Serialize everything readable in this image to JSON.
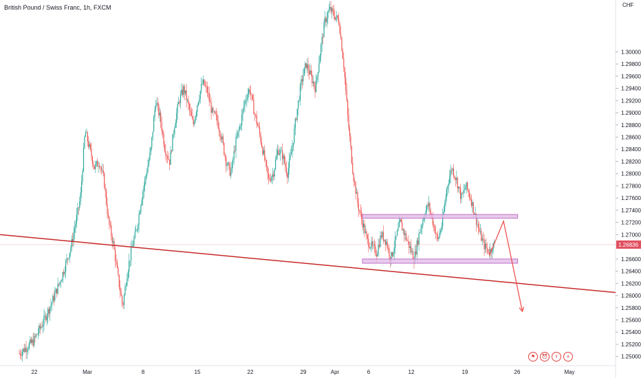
{
  "header": {
    "title": "British Pound / Swiss Franc, 1h, FXCM"
  },
  "price_axis": {
    "currency": "CHF"
  },
  "last_price": {
    "label": "1.26836",
    "value": 1.26836,
    "color": "#e05060"
  },
  "colors": {
    "up": "#26a69a",
    "down": "#ef5350",
    "trendline": "#c62828",
    "zone_fill": "#e1bee7",
    "zone_border": "#c070c8",
    "projection": "#ef5350"
  },
  "toolbar_icons": [
    "flag-icon",
    "alert-icon",
    "share-icon",
    "add-icon"
  ],
  "chart_data": {
    "type": "candlestick",
    "title": "British Pound / Swiss Franc, 1h, FXCM",
    "ylim": [
      1.2485,
      1.3085
    ],
    "y_ticks": [
      "1.25000",
      "1.25200",
      "1.25400",
      "1.25600",
      "1.25800",
      "1.26000",
      "1.26200",
      "1.26400",
      "1.26600",
      "1.27000",
      "1.27200",
      "1.27400",
      "1.27600",
      "1.27800",
      "1.28000",
      "1.28200",
      "1.28400",
      "1.28600",
      "1.28800",
      "1.29000",
      "1.29200",
      "1.29400",
      "1.29600",
      "1.29800",
      "1.30000"
    ],
    "x_ticks": [
      "22",
      "Mar",
      "8",
      "15",
      "22",
      "29",
      "Apr",
      "6",
      "12",
      "19",
      "26",
      "May"
    ],
    "price_path": [
      [
        0,
        1.2505
      ],
      [
        3,
        1.2525
      ],
      [
        5,
        1.2555
      ],
      [
        7,
        1.259
      ],
      [
        9,
        1.263
      ],
      [
        11,
        1.268
      ],
      [
        13,
        1.276
      ],
      [
        14,
        1.287
      ],
      [
        15,
        1.284
      ],
      [
        16,
        1.281
      ],
      [
        17,
        1.282
      ],
      [
        18,
        1.279
      ],
      [
        19,
        1.272
      ],
      [
        20,
        1.2685
      ],
      [
        21,
        1.263
      ],
      [
        22,
        1.2582
      ],
      [
        23,
        1.264
      ],
      [
        24,
        1.268
      ],
      [
        25,
        1.271
      ],
      [
        26,
        1.276
      ],
      [
        27,
        1.28
      ],
      [
        28,
        1.284
      ],
      [
        29,
        1.292
      ],
      [
        30,
        1.289
      ],
      [
        31,
        1.284
      ],
      [
        32,
        1.282
      ],
      [
        33,
        1.288
      ],
      [
        34,
        1.292
      ],
      [
        35,
        1.294
      ],
      [
        36,
        1.291
      ],
      [
        37,
        1.288
      ],
      [
        38,
        1.292
      ],
      [
        39,
        1.295
      ],
      [
        40,
        1.2935
      ],
      [
        41,
        1.29
      ],
      [
        42,
        1.289
      ],
      [
        43,
        1.286
      ],
      [
        44,
        1.282
      ],
      [
        45,
        1.28
      ],
      [
        46,
        1.285
      ],
      [
        47,
        1.288
      ],
      [
        48,
        1.292
      ],
      [
        49,
        1.294
      ],
      [
        50,
        1.29
      ],
      [
        51,
        1.287
      ],
      [
        52,
        1.283
      ],
      [
        53,
        1.279
      ],
      [
        54,
        1.28
      ],
      [
        55,
        1.284
      ],
      [
        56,
        1.283
      ],
      [
        57,
        1.28
      ],
      [
        58,
        1.284
      ],
      [
        59,
        1.29
      ],
      [
        60,
        1.295
      ],
      [
        61,
        1.298
      ],
      [
        62,
        1.296
      ],
      [
        63,
        1.294
      ],
      [
        64,
        1.3
      ],
      [
        65,
        1.305
      ],
      [
        66,
        1.307
      ],
      [
        67,
        1.306
      ],
      [
        68,
        1.305
      ],
      [
        69,
        1.298
      ],
      [
        70,
        1.288
      ],
      [
        71,
        1.28
      ],
      [
        72,
        1.275
      ],
      [
        73,
        1.272
      ],
      [
        74,
        1.269
      ],
      [
        75,
        1.268
      ],
      [
        76,
        1.267
      ],
      [
        77,
        1.27
      ],
      [
        78,
        1.269
      ],
      [
        79,
        1.266
      ],
      [
        80,
        1.269
      ],
      [
        81,
        1.272
      ],
      [
        82,
        1.27
      ],
      [
        83,
        1.268
      ],
      [
        84,
        1.266
      ],
      [
        85,
        1.27
      ],
      [
        86,
        1.273
      ],
      [
        87,
        1.275
      ],
      [
        88,
        1.272
      ],
      [
        89,
        1.269
      ],
      [
        90,
        1.272
      ],
      [
        91,
        1.278
      ],
      [
        92,
        1.281
      ],
      [
        93,
        1.279
      ],
      [
        94,
        1.276
      ],
      [
        95,
        1.278
      ],
      [
        96,
        1.276
      ],
      [
        97,
        1.273
      ],
      [
        98,
        1.27
      ],
      [
        99,
        1.268
      ],
      [
        100,
        1.2672
      ],
      [
        101,
        1.2684
      ]
    ],
    "annotations": {
      "trendline": {
        "from": {
          "x": "start",
          "y": 1.27
        },
        "to": {
          "x": "end",
          "y": 1.2605
        }
      },
      "resistance_zone": {
        "y_top": 1.2733,
        "y_bottom": 1.2727
      },
      "support_zone": {
        "y_top": 1.266,
        "y_bottom": 1.2653
      },
      "projection": {
        "points": [
          [
            100,
            1.2666
          ],
          [
            103,
            1.2722
          ],
          [
            107,
            1.2574
          ]
        ]
      }
    }
  }
}
